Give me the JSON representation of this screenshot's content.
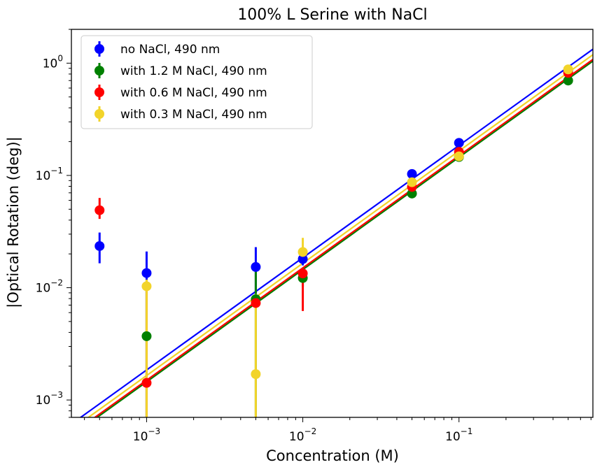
{
  "chart_data": {
    "type": "scatter",
    "title": "100% L Serine with NaCl",
    "xlabel": "Concentration (M)",
    "ylabel": "|Optical Rotation (deg)|",
    "xscale": "log",
    "yscale": "log",
    "xlim": [
      0.00033,
      0.72
    ],
    "ylim": [
      0.0007,
      2.0
    ],
    "grid": false,
    "legend_position": "top-left",
    "x_ticks": [
      {
        "base": "10",
        "exp": "−3",
        "value": 0.001
      },
      {
        "base": "10",
        "exp": "−2",
        "value": 0.01
      },
      {
        "base": "10",
        "exp": "−1",
        "value": 0.1
      }
    ],
    "y_ticks": [
      {
        "base": "10",
        "exp": "−3",
        "value": 0.001
      },
      {
        "base": "10",
        "exp": "−2",
        "value": 0.01
      },
      {
        "base": "10",
        "exp": "−1",
        "value": 0.1
      },
      {
        "base": "10",
        "exp": "0",
        "value": 1
      }
    ],
    "series": [
      {
        "name": "no NaCl, 490 nm",
        "color": "#0000ff",
        "x": [
          0.0005,
          0.001,
          0.005,
          0.01,
          0.05,
          0.1,
          0.5
        ],
        "y": [
          0.0235,
          0.0135,
          0.0153,
          0.018,
          0.103,
          0.195,
          0.85
        ],
        "yerr_low": [
          0.0165,
          0.0006,
          0.0088,
          0.0158,
          0.098,
          0.189,
          0.835
        ],
        "yerr_high": [
          0.031,
          0.021,
          0.023,
          0.0205,
          0.108,
          0.201,
          0.865
        ],
        "fit": {
          "slope": 1.0,
          "intercept_at_x1": 1.85
        }
      },
      {
        "name": "with 1.2 M NaCl, 490 nm",
        "color": "#008000",
        "x": [
          0.001,
          0.005,
          0.01,
          0.05,
          0.1,
          0.5
        ],
        "y": [
          0.0037,
          0.0079,
          0.0122,
          0.069,
          0.146,
          0.7
        ],
        "yerr_low": [
          0.0004,
          0.0004,
          0.0102,
          0.065,
          0.14,
          0.685
        ],
        "yerr_high": [
          0.0105,
          0.0155,
          0.0142,
          0.073,
          0.152,
          0.715
        ],
        "fit": {
          "slope": 1.0,
          "intercept_at_x1": 1.45
        }
      },
      {
        "name": "with 0.6 M NaCl, 490 nm",
        "color": "#ff0000",
        "x": [
          0.0005,
          0.001,
          0.005,
          0.01,
          0.05,
          0.1,
          0.5
        ],
        "y": [
          0.049,
          0.00142,
          0.0073,
          0.0134,
          0.079,
          0.162,
          0.82
        ],
        "yerr_low": [
          0.041,
          0.0004,
          0.0068,
          0.0062,
          0.075,
          0.156,
          0.805
        ],
        "yerr_high": [
          0.063,
          0.0094,
          0.0078,
          0.0148,
          0.083,
          0.168,
          0.835
        ],
        "fit": {
          "slope": 1.0,
          "intercept_at_x1": 1.5
        }
      },
      {
        "name": "with 0.3 M NaCl, 490 nm",
        "color": "#f2d42a",
        "x": [
          0.001,
          0.005,
          0.01,
          0.05,
          0.1,
          0.5
        ],
        "y": [
          0.0103,
          0.0017,
          0.0208,
          0.087,
          0.148,
          0.88
        ],
        "yerr_low": [
          0.0004,
          0.0004,
          0.0165,
          0.083,
          0.142,
          0.865
        ],
        "yerr_high": [
          0.0118,
          0.0088,
          0.0278,
          0.091,
          0.154,
          0.895
        ],
        "fit": {
          "slope": 1.0,
          "intercept_at_x1": 1.65
        }
      }
    ]
  }
}
